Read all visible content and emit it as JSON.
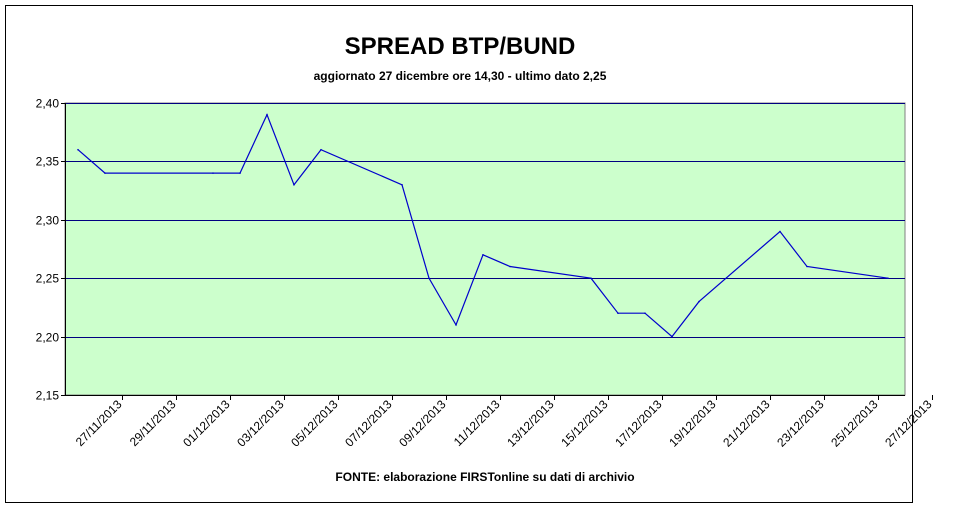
{
  "chart_data": {
    "type": "line",
    "title": "SPREAD BTP/BUND",
    "subtitle": "aggiornato 27  dicembre ore 14,30 - ultimo dato 2,25",
    "source": "FONTE:  elaborazione FIRSTonline su dati di archivio",
    "xlabel": "",
    "ylabel": "",
    "ylim": [
      2.15,
      2.4
    ],
    "yticks": [
      "2,15",
      "2,20",
      "2,25",
      "2,30",
      "2,35",
      "2,40"
    ],
    "yticks_values": [
      2.15,
      2.2,
      2.25,
      2.3,
      2.35,
      2.4
    ],
    "xticks": [
      "27/11/2013",
      "29/11/2013",
      "01/12/2013",
      "03/12/2013",
      "05/12/2013",
      "07/12/2013",
      "09/12/2013",
      "11/12/2013",
      "13/12/2013",
      "15/12/2013",
      "17/12/2013",
      "19/12/2013",
      "21/12/2013",
      "23/12/2013",
      "25/12/2013",
      "27/12/2013"
    ],
    "x": [
      "27/11/2013",
      "28/11/2013",
      "02/12/2013",
      "03/12/2013",
      "04/12/2013",
      "05/12/2013",
      "06/12/2013",
      "09/12/2013",
      "10/12/2013",
      "11/12/2013",
      "12/12/2013",
      "13/12/2013",
      "16/12/2013",
      "17/12/2013",
      "18/12/2013",
      "19/12/2013",
      "20/12/2013",
      "23/12/2013",
      "24/12/2013",
      "27/12/2013"
    ],
    "series": [
      {
        "values": [
          2.36,
          2.34,
          2.34,
          2.34,
          2.39,
          2.33,
          2.36,
          2.33,
          2.25,
          2.21,
          2.27,
          2.26,
          2.25,
          2.22,
          2.22,
          2.2,
          2.23,
          2.29,
          2.26,
          2.25
        ]
      }
    ],
    "grid": true,
    "colors": {
      "plot_background": "#ccffcc",
      "line": "#0000cc",
      "gridline": "#000080"
    }
  }
}
